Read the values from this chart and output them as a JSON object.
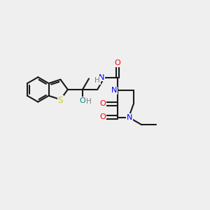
{
  "background_color": "#efefef",
  "bond_color": "#1a1a1a",
  "N_color": "#0000ff",
  "O_color": "#ff0000",
  "S_color": "#cccc00",
  "OH_color": "#008080",
  "H_color": "#808080",
  "figsize": [
    3.0,
    3.0
  ],
  "dpi": 100,
  "xlim": [
    0,
    10
  ],
  "ylim": [
    0,
    10
  ]
}
